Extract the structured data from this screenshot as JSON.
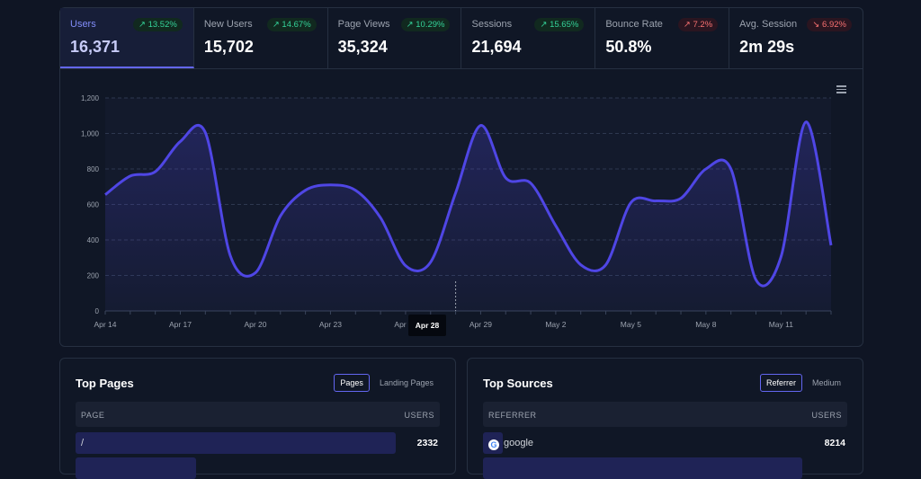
{
  "stats": [
    {
      "label": "Users",
      "value": "16,371",
      "change": "13.52%",
      "trend": "up"
    },
    {
      "label": "New Users",
      "value": "15,702",
      "change": "14.67%",
      "trend": "up"
    },
    {
      "label": "Page Views",
      "value": "35,324",
      "change": "10.29%",
      "trend": "up"
    },
    {
      "label": "Sessions",
      "value": "21,694",
      "change": "15.65%",
      "trend": "up"
    },
    {
      "label": "Bounce Rate",
      "value": "50.8%",
      "change": "7.2%",
      "trend": "up-bad"
    },
    {
      "label": "Avg. Session",
      "value": "2m 29s",
      "change": "6.92%",
      "trend": "down-bad"
    }
  ],
  "chart_data": {
    "type": "area",
    "x": [
      "Apr 14",
      "Apr 15",
      "Apr 16",
      "Apr 17",
      "Apr 18",
      "Apr 19",
      "Apr 20",
      "Apr 21",
      "Apr 22",
      "Apr 23",
      "Apr 24",
      "Apr 25",
      "Apr 26",
      "Apr 27",
      "Apr 28",
      "Apr 29",
      "Apr 30",
      "May 1",
      "May 2",
      "May 3",
      "May 4",
      "May 5",
      "May 6",
      "May 7",
      "May 8",
      "May 9",
      "May 10",
      "May 11",
      "May 12",
      "May 13"
    ],
    "values": [
      655,
      760,
      785,
      955,
      1005,
      310,
      215,
      535,
      680,
      710,
      680,
      525,
      255,
      275,
      665,
      1045,
      750,
      720,
      480,
      260,
      260,
      610,
      620,
      635,
      800,
      800,
      175,
      305,
      1065,
      370
    ],
    "xticks": [
      "Apr 14",
      "Apr 17",
      "Apr 20",
      "Apr 23",
      "Apr 26",
      "Apr 29",
      "May 2",
      "May 5",
      "May 8",
      "May 11"
    ],
    "yticks": [
      "0",
      "200",
      "400",
      "600",
      "800",
      "1,000",
      "1,200"
    ],
    "ylim": [
      0,
      1200
    ],
    "grid": true,
    "color": "#4f46e5",
    "tooltip": "Apr 28"
  },
  "pages": {
    "title": "Top Pages",
    "tabs": [
      "Pages",
      "Landing Pages"
    ],
    "col1": "PAGE",
    "col2": "USERS",
    "rows": [
      {
        "name": "/",
        "value": "2332"
      }
    ]
  },
  "sources": {
    "title": "Top Sources",
    "tabs": [
      "Referrer",
      "Medium"
    ],
    "col1": "REFERRER",
    "col2": "USERS",
    "rows": [
      {
        "name": "google",
        "value": "8214",
        "icon": "google-icon"
      }
    ]
  }
}
